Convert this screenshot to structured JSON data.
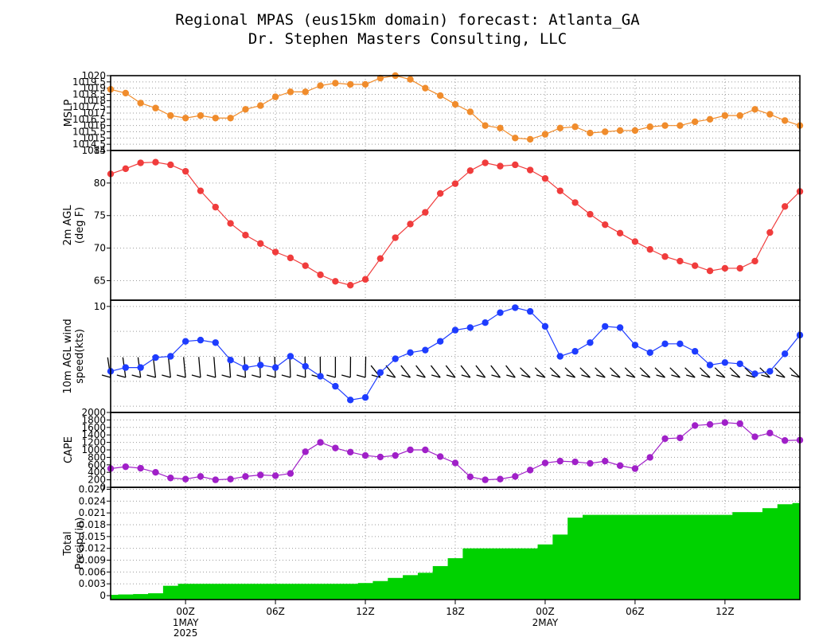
{
  "title_line1": "Regional MPAS (eus15km domain) forecast: Atlanta_GA",
  "title_line2": "Dr. Stephen Masters Consulting, LLC",
  "x_axis": {
    "tick_labels": [
      "00Z",
      "06Z",
      "12Z",
      "18Z",
      "00Z",
      "06Z",
      "12Z"
    ],
    "tick_hours": [
      0,
      6,
      12,
      18,
      24,
      30,
      36
    ],
    "date_labels": [
      {
        "hour": 0,
        "lines": [
          "1MAY",
          "2025"
        ]
      },
      {
        "hour": 24,
        "lines": [
          "2MAY"
        ]
      }
    ],
    "range_hours": [
      -5,
      41
    ]
  },
  "colors": {
    "mslp": "#f08c2c",
    "temp": "#f03c3c",
    "wind": "#1e3cff",
    "cape": "#a020c8",
    "precip": "#00d200"
  },
  "chart_data": [
    {
      "type": "line",
      "ylabel": "MSLP",
      "ylim": [
        1014,
        1020
      ],
      "yticks": [
        1014,
        1014.5,
        1015,
        1015.5,
        1016,
        1016.5,
        1017,
        1017.5,
        1018,
        1018.5,
        1019,
        1019.5,
        1020
      ],
      "ytick_labels": [
        "1014",
        "1014.5",
        "1015",
        "1015.5",
        "1016",
        "1016.5",
        "1017",
        "1017.5",
        "1018",
        "1018.5",
        "1019",
        "1019.5",
        "1020"
      ],
      "x": [
        -5,
        -4,
        -3,
        -2,
        -1,
        0,
        1,
        2,
        3,
        4,
        5,
        6,
        7,
        8,
        9,
        10,
        11,
        12,
        13,
        14,
        15,
        16,
        17,
        18,
        19,
        20,
        21,
        22,
        23,
        24,
        25,
        26,
        27,
        28,
        29,
        30,
        31,
        32,
        33,
        34,
        35,
        36,
        37,
        38,
        39,
        40,
        41
      ],
      "values": [
        1018.9,
        1018.6,
        1017.8,
        1017.4,
        1016.8,
        1016.6,
        1016.8,
        1016.6,
        1016.6,
        1017.3,
        1017.6,
        1018.3,
        1018.7,
        1018.7,
        1019.2,
        1019.4,
        1019.3,
        1019.3,
        1019.8,
        1020.0,
        1019.7,
        1019.0,
        1018.4,
        1017.7,
        1017.1,
        1016.0,
        1015.8,
        1015.0,
        1014.9,
        1015.3,
        1015.8,
        1015.9,
        1015.4,
        1015.5,
        1015.6,
        1015.6,
        1015.9,
        1016.0,
        1016.0,
        1016.3,
        1016.5,
        1016.8,
        1016.8,
        1017.3,
        1016.9,
        1016.4,
        1016.0
      ]
    },
    {
      "type": "line",
      "ylabel": "2m AGL",
      "ylabel2": "(deg F)",
      "ylim": [
        62,
        85
      ],
      "yticks": [
        65,
        70,
        75,
        80,
        85
      ],
      "ytick_labels": [
        "65",
        "70",
        "75",
        "80",
        "85"
      ],
      "x": [
        -5,
        -4,
        -3,
        -2,
        -1,
        0,
        1,
        2,
        3,
        4,
        5,
        6,
        7,
        8,
        9,
        10,
        11,
        12,
        13,
        14,
        15,
        16,
        17,
        18,
        19,
        20,
        21,
        22,
        23,
        24,
        25,
        26,
        27,
        28,
        29,
        30,
        31,
        32,
        33,
        34,
        35,
        36,
        37,
        38,
        39,
        40,
        41
      ],
      "values": [
        81.4,
        82.2,
        83.1,
        83.2,
        82.8,
        81.8,
        78.8,
        76.3,
        73.8,
        72.0,
        70.7,
        69.4,
        68.5,
        67.3,
        65.9,
        64.9,
        64.3,
        65.2,
        68.4,
        71.6,
        73.7,
        75.5,
        78.4,
        79.9,
        81.9,
        83.1,
        82.6,
        82.8,
        82.0,
        80.7,
        78.8,
        77.0,
        75.2,
        73.6,
        72.3,
        71.0,
        69.8,
        68.7,
        68.0,
        67.3,
        66.5,
        66.9,
        66.9,
        68.0,
        72.4,
        76.4,
        78.7
      ]
    },
    {
      "type": "line",
      "ylabel": "10m AGL wind",
      "ylabel2": "speed(kts)",
      "ylim": [
        1.5,
        10.5
      ],
      "yticks": [
        10
      ],
      "ytick_labels": [
        "10"
      ],
      "wind_barbs": true,
      "x": [
        -5,
        -4,
        -3,
        -2,
        -1,
        0,
        1,
        2,
        3,
        4,
        5,
        6,
        7,
        8,
        9,
        10,
        11,
        12,
        13,
        14,
        15,
        16,
        17,
        18,
        19,
        20,
        21,
        22,
        23,
        24,
        25,
        26,
        27,
        28,
        29,
        30,
        31,
        32,
        33,
        34,
        35,
        36,
        37,
        38,
        39,
        40,
        41
      ],
      "values": [
        4.8,
        5.1,
        5.1,
        5.9,
        6.0,
        7.2,
        7.3,
        7.1,
        5.7,
        5.1,
        5.3,
        5.1,
        6.0,
        5.2,
        4.4,
        3.6,
        2.5,
        2.7,
        4.7,
        5.8,
        6.3,
        6.5,
        7.2,
        8.1,
        8.3,
        8.7,
        9.5,
        9.9,
        9.6,
        8.4,
        6.0,
        6.4,
        7.1,
        8.4,
        8.3,
        6.9,
        6.3,
        7.0,
        7.0,
        6.4,
        5.3,
        5.5,
        5.4,
        4.6,
        4.8,
        6.2,
        7.7
      ]
    },
    {
      "type": "line",
      "ylabel": "CAPE",
      "ylim": [
        0,
        2000
      ],
      "yticks": [
        0,
        200,
        400,
        600,
        800,
        1000,
        1200,
        1400,
        1600,
        1800,
        2000
      ],
      "ytick_labels": [
        "0",
        "200",
        "400",
        "600",
        "800",
        "1000",
        "1200",
        "1400",
        "1600",
        "1800",
        "2000"
      ],
      "x": [
        -5,
        -4,
        -3,
        -2,
        -1,
        0,
        1,
        2,
        3,
        4,
        5,
        6,
        7,
        8,
        9,
        10,
        11,
        12,
        13,
        14,
        15,
        16,
        17,
        18,
        19,
        20,
        21,
        22,
        23,
        24,
        25,
        26,
        27,
        28,
        29,
        30,
        31,
        32,
        33,
        34,
        35,
        36,
        37,
        38,
        39,
        40,
        41
      ],
      "values": [
        500,
        550,
        510,
        400,
        250,
        220,
        290,
        200,
        220,
        290,
        330,
        310,
        370,
        950,
        1200,
        1050,
        940,
        850,
        810,
        850,
        1000,
        1000,
        820,
        650,
        280,
        200,
        220,
        290,
        460,
        650,
        700,
        680,
        640,
        700,
        580,
        500,
        800,
        1300,
        1320,
        1650,
        1680,
        1730,
        1700,
        1350,
        1450,
        1250,
        1260
      ]
    },
    {
      "type": "bar",
      "ylabel": "Total",
      "ylabel2": "Precip.(in)",
      "ylim": [
        -0.001,
        0.0275
      ],
      "yticks": [
        0,
        0.003,
        0.006,
        0.009,
        0.012,
        0.015,
        0.018,
        0.021,
        0.024,
        0.027
      ],
      "ytick_labels": [
        "0",
        "0.003",
        "0.006",
        "0.009",
        "0.012",
        "0.015",
        "0.018",
        "0.021",
        "0.024",
        "0.027"
      ],
      "x": [
        -5,
        -4,
        -3,
        -2,
        -1,
        0,
        1,
        2,
        3,
        4,
        5,
        6,
        7,
        8,
        9,
        10,
        11,
        12,
        13,
        14,
        15,
        16,
        17,
        18,
        19,
        20,
        21,
        22,
        23,
        24,
        25,
        26,
        27,
        28,
        29,
        30,
        31,
        32,
        33,
        34,
        35,
        36,
        37,
        38,
        39,
        40,
        41
      ],
      "values": [
        0.0002,
        0.0003,
        0.0004,
        0.0006,
        0.0025,
        0.003,
        0.003,
        0.003,
        0.003,
        0.003,
        0.003,
        0.003,
        0.003,
        0.003,
        0.003,
        0.003,
        0.003,
        0.0032,
        0.0037,
        0.0045,
        0.0052,
        0.0058,
        0.0075,
        0.0095,
        0.012,
        0.012,
        0.012,
        0.012,
        0.012,
        0.013,
        0.0155,
        0.0198,
        0.0205,
        0.0205,
        0.0205,
        0.0205,
        0.0205,
        0.0205,
        0.0205,
        0.0205,
        0.0205,
        0.0205,
        0.0212,
        0.0212,
        0.0222,
        0.0232,
        0.0235
      ]
    }
  ]
}
